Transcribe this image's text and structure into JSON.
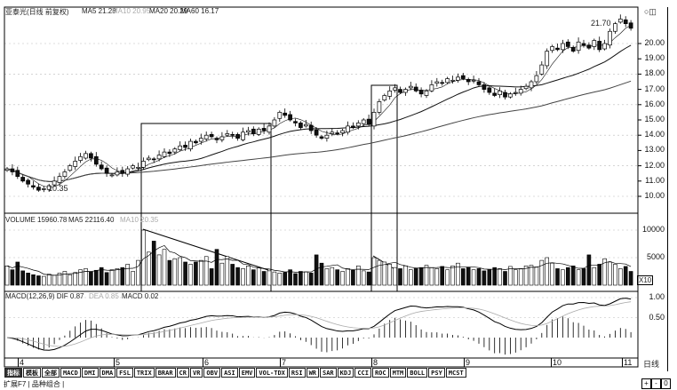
{
  "header": {
    "title": "亚泰光(日线 前复权)",
    "ma5": "MA5  21.28",
    "ma10_faded": "MA10  20.95",
    "ma20": "MA20  20.29",
    "ma60": "MA60  16.17"
  },
  "volume_header": {
    "label": "VOLUME  15960.78",
    "ma5": "MA5  22116.40",
    "ma10_faded": "MA10  20.35"
  },
  "macd_header": {
    "label": "MACD(12,26,9)  DIF  0.87",
    "dea_faded": "DEA  0.85",
    "macd": "MACD  0.02"
  },
  "annotations": {
    "high": "21.70",
    "low": "10.35",
    "vol_unit": "X10",
    "period": "日线"
  },
  "zoom_buttons": [
    "+",
    "-",
    "0"
  ],
  "indicator_buttons": [
    "指标",
    "模板",
    "全部",
    "MACD",
    "DMI",
    "DMA",
    "FSL",
    "TRIX",
    "BRAR",
    "CR",
    "VR",
    "OBV",
    "ASI",
    "EMV",
    "VOL-TDX",
    "RSI",
    "WR",
    "SAR",
    "KDJ",
    "CCI",
    "ROC",
    "MTM",
    "BOLL",
    "PSY",
    "MCST"
  ],
  "footer": "扩展F7 | 品种组合 |",
  "colors": {
    "up": "#ffffff",
    "down": "#111111",
    "grid": "#bbbbbb",
    "line": "#111111",
    "ma60": "#444444"
  },
  "chart_data": [
    {
      "type": "candlestick",
      "title": "",
      "y_ticks": [
        "20.00",
        "19.00",
        "18.00",
        "17.00",
        "16.00",
        "15.00",
        "14.00",
        "13.00",
        "12.00",
        "11.00",
        "10.00"
      ],
      "ylim": [
        9.2,
        22.0
      ],
      "x_tick_labels": [
        "4",
        "5",
        "6",
        "7",
        "8",
        "9",
        "10",
        "11"
      ],
      "close": [
        11.8,
        11.6,
        11.3,
        11.0,
        10.8,
        10.6,
        10.4,
        10.5,
        10.7,
        11.0,
        11.3,
        11.6,
        12.0,
        12.3,
        12.6,
        12.8,
        12.5,
        12.1,
        11.8,
        11.5,
        11.4,
        11.6,
        11.5,
        11.8,
        12.0,
        11.9,
        12.3,
        12.5,
        12.4,
        12.7,
        12.9,
        12.8,
        13.1,
        13.3,
        13.2,
        13.6,
        13.5,
        13.8,
        14.0,
        13.9,
        13.7,
        13.9,
        14.1,
        14.0,
        13.8,
        14.2,
        14.3,
        14.1,
        14.4,
        14.3,
        14.6,
        15.0,
        15.5,
        15.3,
        15.0,
        14.8,
        14.5,
        14.7,
        14.3,
        14.0,
        13.8,
        14.0,
        14.2,
        14.1,
        14.3,
        14.6,
        14.5,
        14.8,
        15.0,
        14.7,
        15.5,
        16.2,
        16.6,
        16.9,
        17.1,
        16.8,
        17.0,
        17.2,
        16.9,
        16.7,
        16.9,
        17.3,
        17.5,
        17.4,
        17.7,
        17.6,
        17.8,
        17.7,
        17.5,
        17.6,
        17.3,
        17.0,
        16.8,
        16.6,
        16.9,
        16.5,
        16.7,
        16.8,
        17.0,
        17.2,
        17.5,
        17.9,
        18.6,
        19.5,
        19.8,
        19.6,
        20.0,
        19.8,
        19.5,
        20.1,
        19.9,
        19.7,
        20.2,
        19.6,
        20.0,
        20.8,
        21.3,
        21.6,
        21.3,
        21.0
      ],
      "moving_averages": [
        5,
        20,
        60
      ],
      "highlight_boxes": [
        "rally with shrinking volume (months 5–7)",
        "breakout (month 8)"
      ]
    },
    {
      "type": "bar",
      "title": "",
      "y_ticks": [
        "10000",
        "5000"
      ],
      "ylim": [
        0,
        10000
      ],
      "values": [
        3500,
        2800,
        4200,
        2600,
        2200,
        1900,
        1700,
        1600,
        2000,
        1800,
        2200,
        2500,
        1900,
        2300,
        2800,
        3000,
        2400,
        2700,
        3200,
        2300,
        2800,
        3000,
        3200,
        3800,
        2500,
        4500,
        10000,
        6000,
        8000,
        5500,
        6500,
        4500,
        4800,
        5000,
        4200,
        3800,
        4200,
        4500,
        5200,
        3000,
        6500,
        4000,
        5200,
        3800,
        3200,
        3000,
        3500,
        2800,
        3200,
        2500,
        2600,
        2400,
        2200,
        2300,
        2800,
        2100,
        2500,
        2400,
        2200,
        5500,
        4000,
        3000,
        3200,
        2800,
        2500,
        3000,
        2700,
        3500,
        2600,
        2400,
        5000,
        4500,
        4200,
        3800,
        3200,
        3000,
        3500,
        2800,
        3000,
        3200,
        3600,
        3200,
        3000,
        3400,
        2800,
        3500,
        4000,
        3000,
        3200,
        2800,
        3000,
        2600,
        2800,
        3200,
        3000,
        2500,
        3400,
        2800,
        3000,
        3500,
        3600,
        3300,
        4500,
        5000,
        4000,
        3000,
        2800,
        3200,
        3500,
        2800,
        3000,
        5500,
        3200,
        3800,
        4800,
        4200,
        3800,
        3000,
        3400,
        2500
      ]
    },
    {
      "type": "macd",
      "title": "",
      "params": [
        12,
        26,
        9
      ],
      "y_ticks": [
        "1.00",
        "0.50"
      ],
      "ylim": [
        -0.7,
        1.15
      ]
    }
  ]
}
